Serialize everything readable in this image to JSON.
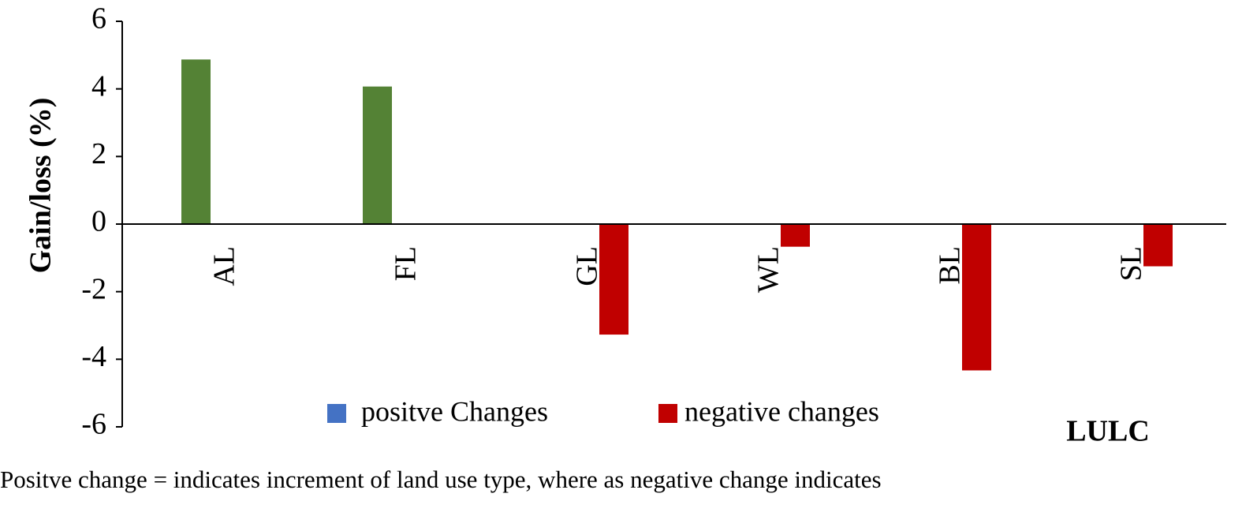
{
  "chart_data": {
    "type": "bar",
    "y_label": "Gain/loss (%)",
    "x_label": "LULC",
    "note": "Positve change = indicates increment of land use type,  where as negative change  indicates",
    "categories": [
      "AL",
      "FL",
      "GL",
      "WL",
      "BL",
      "SL"
    ],
    "series": [
      {
        "name": "positve Changes",
        "color": "#548235",
        "legend_color": "#4472c4",
        "values": [
          4.87,
          4.07,
          null,
          null,
          null,
          null
        ]
      },
      {
        "name": "negative changes",
        "color": "#c00000",
        "values": [
          null,
          null,
          -3.27,
          -0.67,
          -4.33,
          -1.25
        ]
      }
    ],
    "ylim": [
      -6,
      6
    ],
    "yticks": [
      -6,
      -4,
      -2,
      0,
      2,
      4,
      6
    ],
    "grid": false
  }
}
